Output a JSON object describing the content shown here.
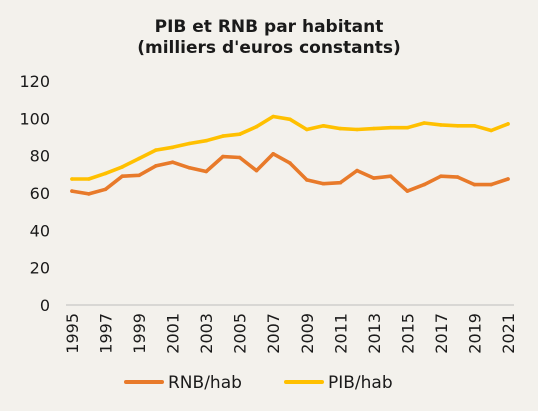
{
  "chart_data": {
    "type": "line",
    "title_line1": "PIB et RNB par habitant",
    "title_line2": "(milliers d'euros constants)",
    "x": [
      1995,
      1996,
      1997,
      1998,
      1999,
      2000,
      2001,
      2002,
      2003,
      2004,
      2005,
      2006,
      2007,
      2008,
      2009,
      2010,
      2011,
      2012,
      2013,
      2014,
      2015,
      2016,
      2017,
      2018,
      2019,
      2020,
      2021
    ],
    "x_tick_labels": [
      "1995",
      "1997",
      "1999",
      "2001",
      "2003",
      "2005",
      "2007",
      "2009",
      "2011",
      "2013",
      "2015",
      "2017",
      "2019",
      "2021"
    ],
    "y_ticks": [
      0,
      20,
      40,
      60,
      80,
      100,
      120
    ],
    "ylim": [
      0,
      120
    ],
    "grid": false,
    "legend_position": "bottom",
    "series": [
      {
        "name": "RNB/hab",
        "color": "#e87a2a",
        "values": [
          61,
          59.5,
          62,
          69,
          69.5,
          74.5,
          76.5,
          73.5,
          71.5,
          79.5,
          79,
          72,
          81,
          76,
          67,
          65,
          65.5,
          72,
          68,
          69,
          61,
          64.5,
          69,
          68.5,
          64.5,
          64.5,
          67.5
        ]
      },
      {
        "name": "PIB/hab",
        "color": "#ffc000",
        "values": [
          67.5,
          67.5,
          70.5,
          74,
          78.5,
          83,
          84.5,
          86.5,
          88,
          90.5,
          91.5,
          95.5,
          101,
          99.5,
          94,
          96,
          94.5,
          94,
          94.5,
          95,
          95,
          97.5,
          96.5,
          96,
          96,
          93.5,
          97
        ]
      }
    ]
  }
}
